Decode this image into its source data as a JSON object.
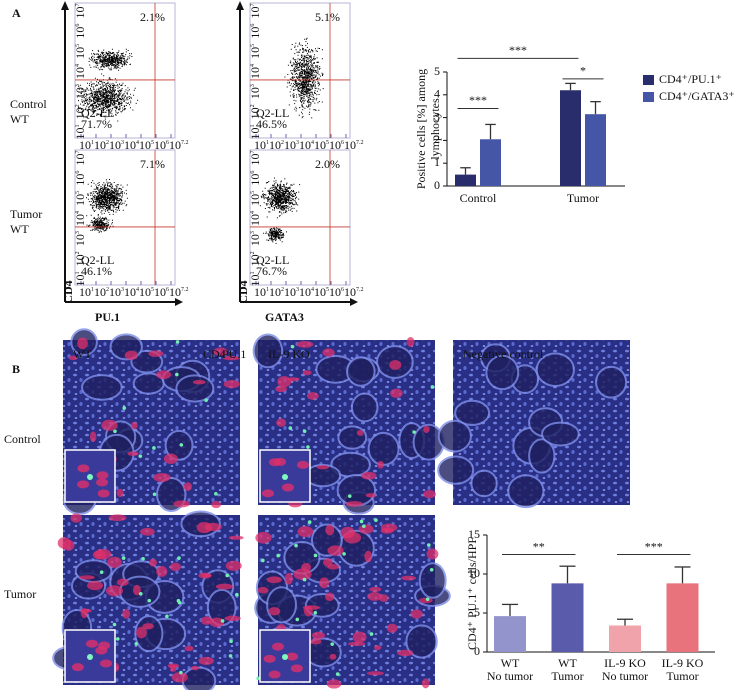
{
  "panel_a": {
    "label": "A",
    "row_labels": [
      [
        "Control",
        "WT"
      ],
      [
        "Tumor",
        "WT"
      ]
    ],
    "y_axis_label": "CD4",
    "x_axis_labels": [
      "PU.1",
      "GATA3"
    ],
    "tick_base": "10",
    "x_tick_exponents": [
      "1",
      "2",
      "3",
      "4",
      "5",
      "6",
      "7.2"
    ],
    "y_tick_exponents": [
      "1",
      "2",
      "3",
      "4",
      "5",
      "6",
      "7"
    ],
    "flow_plots": [
      {
        "quadrant_ur": "2.1%",
        "gate_label": "Q2-LL",
        "gate_value": "71.7%"
      },
      {
        "quadrant_ur": "5.1%",
        "gate_label": "Q2-LL",
        "gate_value": "46.5%"
      },
      {
        "quadrant_ur": "7.1%",
        "gate_label": "Q2-LL",
        "gate_value": "46.1%"
      },
      {
        "quadrant_ur": "2.0%",
        "gate_label": "Q2-LL",
        "gate_value": "76.7%"
      }
    ]
  },
  "panel_b": {
    "label": "B",
    "row_labels": [
      "Control",
      "Tumor"
    ],
    "image_labels": [
      "WT",
      "IL-9 KO",
      "Negative control"
    ],
    "stain_labels": [
      "CD4",
      "PU.1"
    ]
  },
  "chart_data": [
    {
      "type": "bar",
      "y_label": [
        "Positive cells [%] among",
        "lymphocytes"
      ],
      "categories": [
        "Control",
        "Tumor"
      ],
      "series": [
        {
          "name": "CD4⁺/PU.1⁺",
          "color": "#2a2d6b",
          "values": [
            0.5,
            4.2
          ],
          "errors": [
            0.3,
            0.3
          ]
        },
        {
          "name": "CD4⁺/GATA3⁺",
          "color": "#4656a6",
          "values": [
            2.05,
            3.15
          ],
          "errors": [
            0.65,
            0.55
          ]
        }
      ],
      "ylim": [
        0,
        5
      ],
      "yticks": [
        0,
        1,
        2,
        3,
        4,
        5
      ],
      "legend": "right",
      "annotations": [
        "***",
        "***",
        "*"
      ]
    },
    {
      "type": "bar",
      "y_label": [
        "CD4⁺ PU.1⁺ cells/HPF"
      ],
      "categories": [
        [
          "WT",
          "No tumor"
        ],
        [
          "WT",
          "Tumor"
        ],
        [
          "IL-9 KO",
          "No tumor"
        ],
        [
          "IL-9 KO",
          "Tumor"
        ]
      ],
      "values": [
        4.6,
        8.8,
        3.4,
        8.8
      ],
      "errors": [
        1.5,
        2.2,
        0.8,
        2.1
      ],
      "colors": [
        "#9494cc",
        "#5b5bab",
        "#f1a3ab",
        "#e8737c"
      ],
      "ylim": [
        0,
        15
      ],
      "yticks": [
        0,
        5,
        10,
        15
      ],
      "annotations": [
        "**",
        "***"
      ]
    }
  ]
}
